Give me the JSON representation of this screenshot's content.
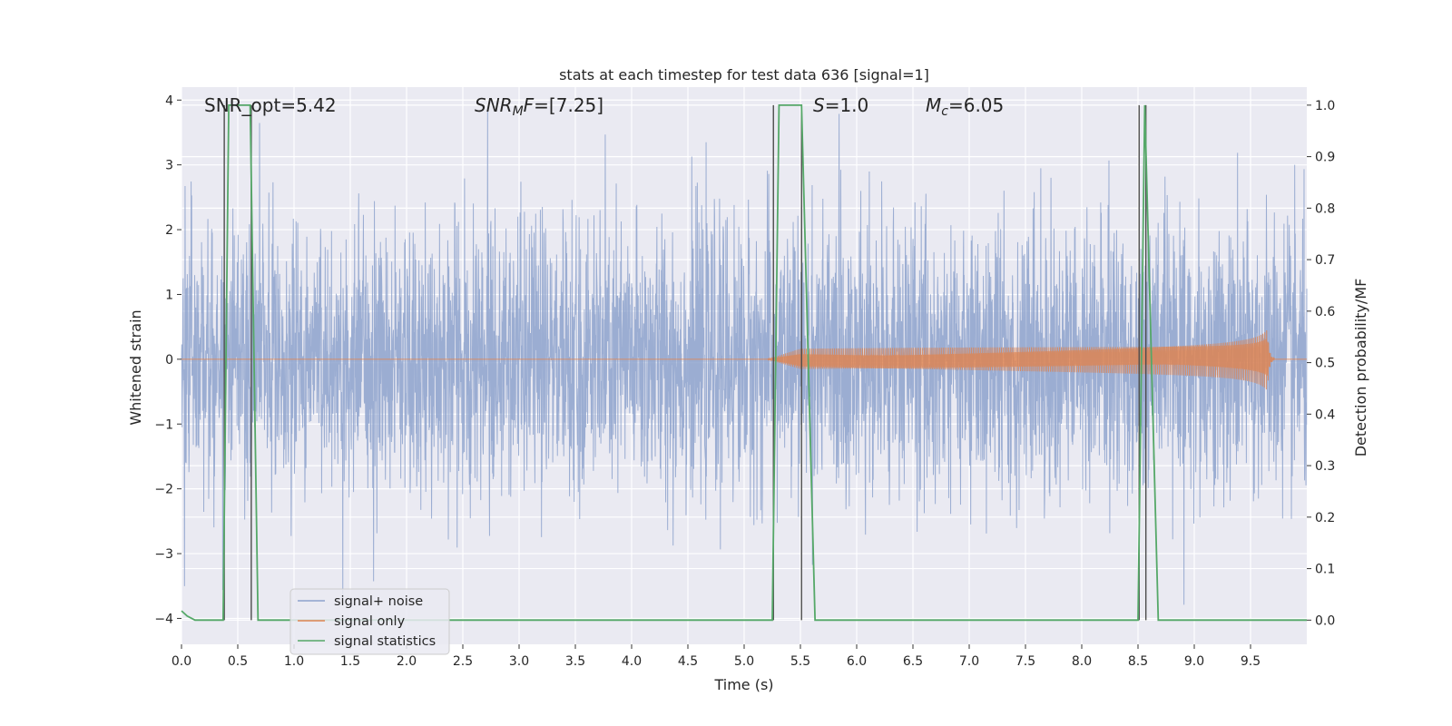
{
  "chart_data": {
    "type": "line",
    "title": "stats at each timestep for test data 636 [signal=1]",
    "xlabel": "Time (s)",
    "ylabel": "Whitened strain",
    "y2label": "Detection probability/MF",
    "xlim": [
      0.0,
      10.0
    ],
    "ylim": [
      -4.4,
      4.2
    ],
    "y2lim": [
      -0.047,
      1.035
    ],
    "x_ticks": [
      0.0,
      0.5,
      1.0,
      1.5,
      2.0,
      2.5,
      3.0,
      3.5,
      4.0,
      4.5,
      5.0,
      5.5,
      6.0,
      6.5,
      7.0,
      7.5,
      8.0,
      8.5,
      9.0,
      9.5
    ],
    "x_tick_labels": [
      "0.0",
      "0.5",
      "1.0",
      "1.5",
      "2.0",
      "2.5",
      "3.0",
      "3.5",
      "4.0",
      "4.5",
      "5.0",
      "5.5",
      "6.0",
      "6.5",
      "7.0",
      "7.5",
      "8.0",
      "8.5",
      "9.0",
      "9.5"
    ],
    "y_ticks": [
      -4,
      -3,
      -2,
      -1,
      0,
      1,
      2,
      3,
      4
    ],
    "y_tick_labels": [
      "−4",
      "−3",
      "−2",
      "−1",
      "0",
      "1",
      "2",
      "3",
      "4"
    ],
    "y2_ticks": [
      0.0,
      0.1,
      0.2,
      0.3,
      0.4,
      0.5,
      0.6,
      0.7,
      0.8,
      0.9,
      1.0
    ],
    "y2_tick_labels": [
      "0.0",
      "0.1",
      "0.2",
      "0.3",
      "0.4",
      "0.5",
      "0.6",
      "0.7",
      "0.8",
      "0.9",
      "1.0"
    ],
    "grid": true,
    "legend_position": "lower-left",
    "annotations": {
      "snr_opt": "SNR_opt=5.42",
      "snr_mf_sym": "SNR",
      "snr_mf_sub": "M",
      "snr_mf_tail": "F",
      "snr_mf_val": "=[7.25]",
      "s_sym": "S",
      "s_val": "=1.0",
      "mc_sym": "M",
      "mc_sub": "c",
      "mc_val": "=6.05"
    },
    "series": [
      {
        "name": "signal+ noise",
        "color": "#8da2cc",
        "kind": "noise",
        "typical_abs_max": 2.3,
        "peak_abs_max": 3.9
      },
      {
        "name": "signal only",
        "color": "#dd8452",
        "kind": "chirp",
        "start": 5.2,
        "merger": 9.65,
        "peak_amplitude": 0.5
      },
      {
        "name": "signal statistics",
        "color": "#55a868",
        "kind": "step",
        "axis": "right",
        "x": [
          0.0,
          0.05,
          0.12,
          0.37,
          0.42,
          0.61,
          0.68,
          5.25,
          5.31,
          5.51,
          5.63,
          8.5,
          8.56,
          8.68,
          10.0
        ],
        "y": [
          0.018,
          0.008,
          0.0,
          0.0,
          1.0,
          1.0,
          0.0,
          0.0,
          1.0,
          1.0,
          0.0,
          0.0,
          1.0,
          0.0,
          0.0
        ]
      }
    ],
    "vertical_markers": [
      {
        "x": 0.38,
        "y2_top": 1.0,
        "color": "#4c4c4c"
      },
      {
        "x": 0.62,
        "y2_top": 1.0,
        "color": "#4c4c4c"
      },
      {
        "x": 5.26,
        "y2_top": 1.0,
        "color": "#4c4c4c"
      },
      {
        "x": 5.51,
        "y2_top": 1.0,
        "color": "#4c4c4c"
      },
      {
        "x": 8.51,
        "y2_top": 1.0,
        "color": "#4c4c4c"
      },
      {
        "x": 8.57,
        "y2_top": 1.0,
        "color": "#4c4c4c"
      }
    ],
    "colors": {
      "plot_bg": "#eaeaf2",
      "grid": "#ffffff",
      "text": "#262626"
    }
  }
}
